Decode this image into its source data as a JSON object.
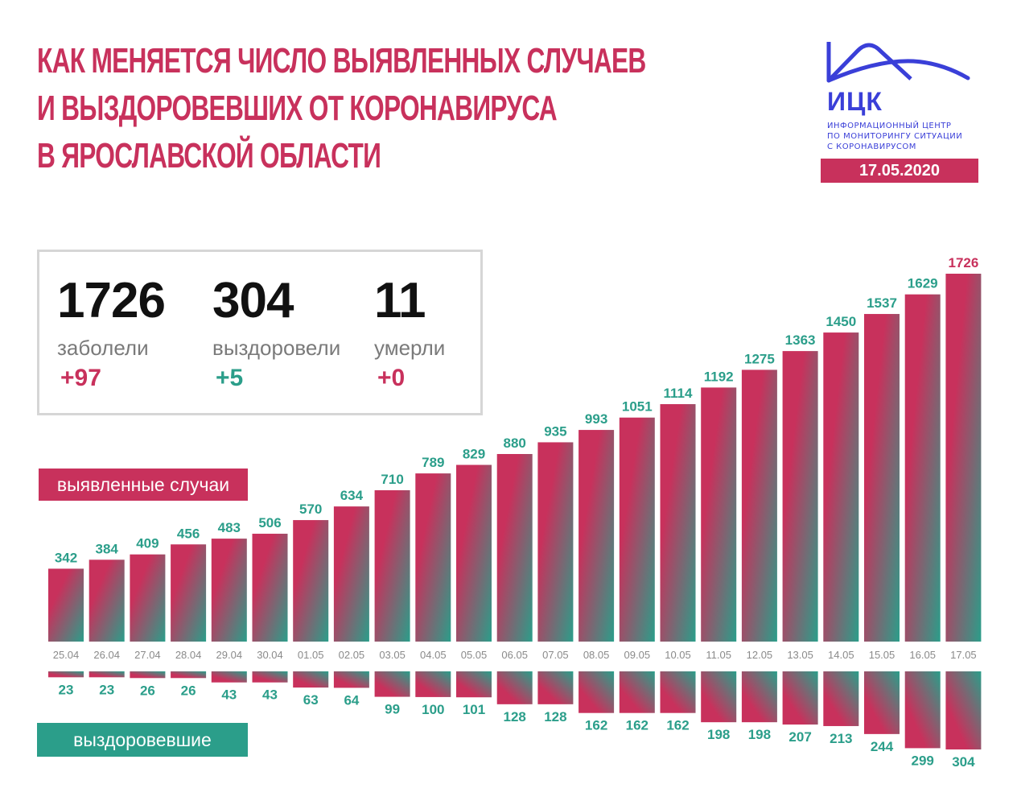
{
  "header": {
    "title_lines": [
      "КАК МЕНЯЕТСЯ ЧИСЛО ВЫЯВЛЕННЫХ СЛУЧАЕВ",
      "И ВЫЗДОРОВЕВШИХ ОТ КОРОНАВИРУСА",
      "В ЯРОСЛАВСКОЙ ОБЛАСТИ"
    ]
  },
  "logo": {
    "name": "ИЦК",
    "subtitle_lines": [
      "ИНФОРМАЦИОННЫЙ ЦЕНТР",
      "ПО МОНИТОРИНГУ СИТУАЦИИ",
      "С КОРОНАВИРУСОМ"
    ],
    "date": "17.05.2020"
  },
  "summary": {
    "cases": {
      "value": "1726",
      "label": "заболели",
      "delta": "+97"
    },
    "recovered": {
      "value": "304",
      "label": "выздоровели",
      "delta": "+5"
    },
    "deaths": {
      "value": "11",
      "label": "умерли",
      "delta": "+0"
    }
  },
  "legend": {
    "cases_label": "выявленные случаи",
    "recovered_label": "выздоровевшие"
  },
  "colors": {
    "accent_red": "#c8315c",
    "accent_teal": "#2b9e8a",
    "logo_blue": "#3a3fd8",
    "date_grey": "#8a8a8a",
    "box_border": "#d6d6d6"
  },
  "chart_data": {
    "type": "bar",
    "categories": [
      "25.04",
      "26.04",
      "27.04",
      "28.04",
      "29.04",
      "30.04",
      "01.05",
      "02.05",
      "03.05",
      "04.05",
      "05.05",
      "06.05",
      "07.05",
      "08.05",
      "09.05",
      "10.05",
      "11.05",
      "12.05",
      "13.05",
      "14.05",
      "15.05",
      "16.05",
      "17.05"
    ],
    "series": [
      {
        "name": "выявленные случаи",
        "direction": "up",
        "values": [
          342,
          384,
          409,
          456,
          483,
          506,
          570,
          634,
          710,
          789,
          829,
          880,
          935,
          993,
          1051,
          1114,
          1192,
          1275,
          1363,
          1450,
          1537,
          1629,
          1726
        ]
      },
      {
        "name": "выздоровевшие",
        "direction": "down",
        "values": [
          23,
          23,
          26,
          26,
          43,
          43,
          63,
          64,
          99,
          100,
          101,
          128,
          128,
          162,
          162,
          162,
          198,
          198,
          207,
          213,
          244,
          299,
          304
        ]
      }
    ],
    "gradient": [
      "#c8315c",
      "#2b9e8a"
    ],
    "highlight_last_label_color": "#c8315c",
    "value_label_color": "#2b9e8a",
    "title": "",
    "xlabel": "",
    "ylabel": "",
    "grid": false
  }
}
